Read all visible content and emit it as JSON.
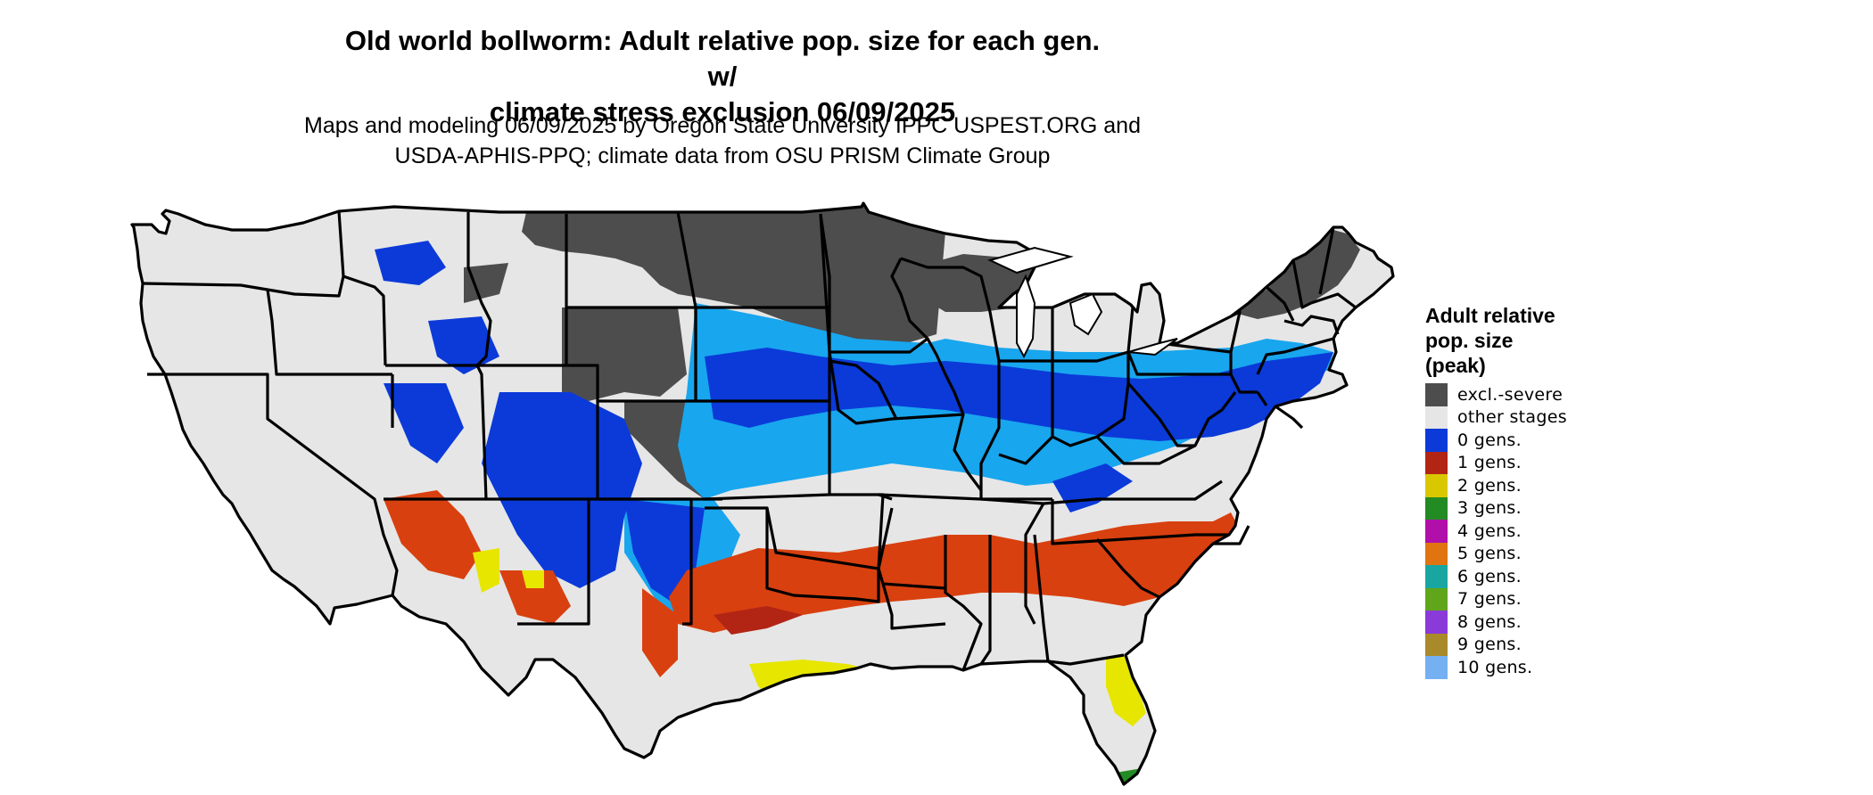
{
  "title_lines": [
    "Old world bollworm: Adult relative pop. size for each gen. w/",
    "climate stress exclusion 06/09/2025"
  ],
  "subtitle_lines": [
    "Maps and modeling 06/09/2025 by Oregon State University IPPC USPEST.ORG and",
    "USDA-APHIS-PPQ; climate data from OSU PRISM Climate Group"
  ],
  "legend": {
    "title_lines": [
      "Adult relative",
      "pop. size",
      "(peak)"
    ],
    "items": [
      {
        "label": "excl.-severe",
        "color": "#4d4d4d"
      },
      {
        "label": "other stages",
        "color": "#e6e6e6"
      },
      {
        "label": "0 gens.",
        "color": "#0b3ad9"
      },
      {
        "label": "1 gens.",
        "color": "#b22514"
      },
      {
        "label": "2 gens.",
        "color": "#d9c800"
      },
      {
        "label": "3 gens.",
        "color": "#238b23"
      },
      {
        "label": "4 gens.",
        "color": "#b00faa"
      },
      {
        "label": "5 gens.",
        "color": "#e07411"
      },
      {
        "label": "6 gens.",
        "color": "#1aa6a0"
      },
      {
        "label": "7 gens.",
        "color": "#5fa61a"
      },
      {
        "label": "8 gens.",
        "color": "#8a3ad9"
      },
      {
        "label": "9 gens.",
        "color": "#a88a2a"
      },
      {
        "label": "10 gens.",
        "color": "#74b0f2"
      }
    ]
  },
  "map_colors": {
    "land": "#e6e6e6",
    "excluded": "#4d4d4d",
    "zero_gens_dark": "#0b3ad9",
    "zero_gens_light": "#18a6ee",
    "one_gen": "#d9400f",
    "one_gen_dark": "#b22514",
    "two_gens": "#e6e600",
    "three_gens": "#238b23",
    "borders": "#000000"
  }
}
